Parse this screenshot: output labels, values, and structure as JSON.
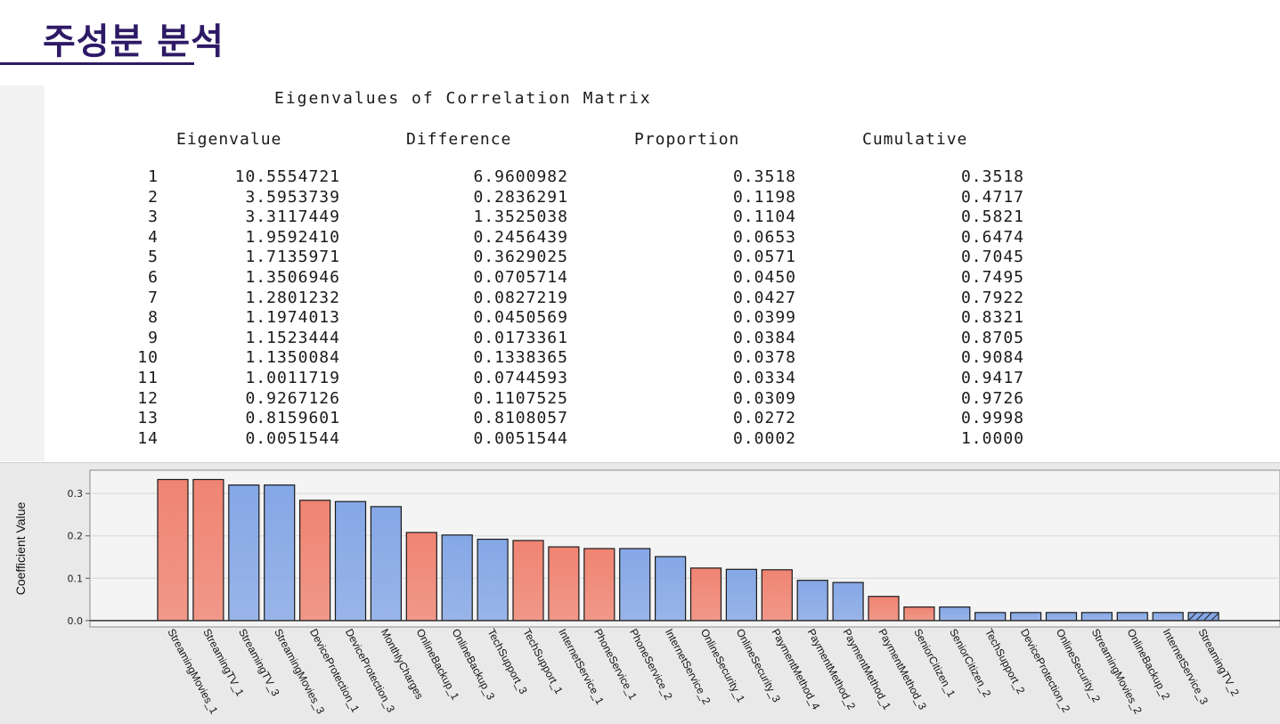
{
  "slide": {
    "title": "주성분 분석"
  },
  "eigen_table": {
    "caption": "Eigenvalues of Correlation Matrix",
    "headers": {
      "eigenvalue": "Eigenvalue",
      "difference": "Difference",
      "proportion": "Proportion",
      "cumulative": "Cumulative"
    },
    "rows": [
      {
        "idx": "1",
        "eigenvalue": "10.5554721",
        "difference": "6.9600982",
        "proportion": "0.3518",
        "cumulative": "0.3518"
      },
      {
        "idx": "2",
        "eigenvalue": "3.5953739",
        "difference": "0.2836291",
        "proportion": "0.1198",
        "cumulative": "0.4717"
      },
      {
        "idx": "3",
        "eigenvalue": "3.3117449",
        "difference": "1.3525038",
        "proportion": "0.1104",
        "cumulative": "0.5821"
      },
      {
        "idx": "4",
        "eigenvalue": "1.9592410",
        "difference": "0.2456439",
        "proportion": "0.0653",
        "cumulative": "0.6474"
      },
      {
        "idx": "5",
        "eigenvalue": "1.7135971",
        "difference": "0.3629025",
        "proportion": "0.0571",
        "cumulative": "0.7045"
      },
      {
        "idx": "6",
        "eigenvalue": "1.3506946",
        "difference": "0.0705714",
        "proportion": "0.0450",
        "cumulative": "0.7495"
      },
      {
        "idx": "7",
        "eigenvalue": "1.2801232",
        "difference": "0.0827219",
        "proportion": "0.0427",
        "cumulative": "0.7922"
      },
      {
        "idx": "8",
        "eigenvalue": "1.1974013",
        "difference": "0.0450569",
        "proportion": "0.0399",
        "cumulative": "0.8321"
      },
      {
        "idx": "9",
        "eigenvalue": "1.1523444",
        "difference": "0.0173361",
        "proportion": "0.0384",
        "cumulative": "0.8705"
      },
      {
        "idx": "10",
        "eigenvalue": "1.1350084",
        "difference": "0.1338365",
        "proportion": "0.0378",
        "cumulative": "0.9084"
      },
      {
        "idx": "11",
        "eigenvalue": "1.0011719",
        "difference": "0.0744593",
        "proportion": "0.0334",
        "cumulative": "0.9417"
      },
      {
        "idx": "12",
        "eigenvalue": "0.9267126",
        "difference": "0.1107525",
        "proportion": "0.0309",
        "cumulative": "0.9726"
      },
      {
        "idx": "13",
        "eigenvalue": "0.8159601",
        "difference": "0.8108057",
        "proportion": "0.0272",
        "cumulative": "0.9998"
      },
      {
        "idx": "14",
        "eigenvalue": "0.0051544",
        "difference": "0.0051544",
        "proportion": "0.0002",
        "cumulative": "1.0000"
      }
    ]
  },
  "chart_data": {
    "type": "bar",
    "title": "",
    "xlabel": "",
    "ylabel": "Coefficient Value",
    "ylim": [
      -0.015,
      0.355
    ],
    "yticks": [
      "0.0",
      "0.1",
      "0.2",
      "0.3"
    ],
    "grid": true,
    "colors": {
      "positive": "#f08472",
      "negative": "#85a7e6",
      "bar_border": "#1a1a1a",
      "axis": "#333333"
    },
    "categories": [
      "StreamingMovies_1",
      "StreamingTV_1",
      "StreamingTV_3",
      "StreamingMovies_3",
      "DeviceProtection_1",
      "DeviceProtection_3",
      "MonthlyCharges",
      "OnlineBackup_1",
      "OnlineBackup_3",
      "TechSupport_3",
      "TechSupport_1",
      "InternetService_1",
      "PhoneService_1",
      "PhoneService_2",
      "InternetService_2",
      "OnlineSecurity_1",
      "OnlineSecurity_3",
      "PaymentMethod_4",
      "PaymentMethod_2",
      "PaymentMethod_1",
      "PaymentMethod_3",
      "SeniorCitizen_1",
      "SeniorCitizen_2",
      "TechSupport_2",
      "DeviceProtection_2",
      "OnlineSecurity_2",
      "StreamingMovies_2",
      "OnlineBackup_2",
      "InternetService_3",
      "StreamingTV_2"
    ],
    "values": [
      0.333,
      0.333,
      0.32,
      0.32,
      0.284,
      0.281,
      0.269,
      0.208,
      0.202,
      0.192,
      0.189,
      0.174,
      0.17,
      0.17,
      0.151,
      0.124,
      0.121,
      0.12,
      0.095,
      0.09,
      0.057,
      0.032,
      0.032,
      0.019,
      0.019,
      0.019,
      0.019,
      0.019,
      0.019,
      0.019
    ],
    "signs": [
      "+",
      "+",
      "-",
      "-",
      "+",
      "-",
      "-",
      "+",
      "-",
      "-",
      "+",
      "+",
      "+",
      "-",
      "-",
      "+",
      "-",
      "+",
      "-",
      "-",
      "+",
      "+",
      "-",
      "-",
      "-",
      "-",
      "-",
      "-",
      "-",
      "-"
    ],
    "hatched": [
      "StreamingTV_2"
    ]
  }
}
